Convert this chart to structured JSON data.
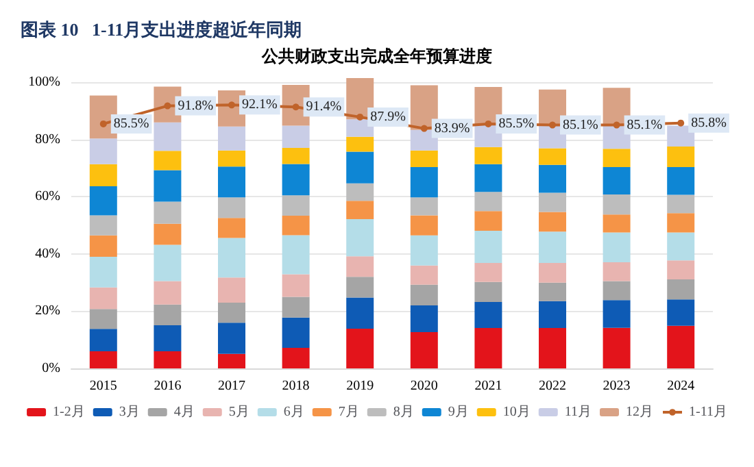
{
  "chart_data": {
    "type": "bar",
    "title": "图表 10   1-11月支出进度超近年同期",
    "subtitle": "公共财政支出完成全年预算进度",
    "categories": [
      "2015",
      "2016",
      "2017",
      "2018",
      "2019",
      "2020",
      "2021",
      "2022",
      "2023",
      "2024"
    ],
    "stacked": true,
    "grid": "y",
    "legend": "bottom",
    "ylim": [
      0,
      102
    ],
    "yticks": [
      {
        "value": 0,
        "label": "0%"
      },
      {
        "value": 20,
        "label": "20%"
      },
      {
        "value": 40,
        "label": "40%"
      },
      {
        "value": 60,
        "label": "60%"
      },
      {
        "value": 80,
        "label": "80%"
      },
      {
        "value": 100,
        "label": "100%"
      }
    ],
    "series": [
      {
        "name": "1-2月",
        "color": "#e3141b",
        "values": [
          6.0,
          6.0,
          5.1,
          7.2,
          13.9,
          12.7,
          14.1,
          14.1,
          14.2,
          14.9
        ]
      },
      {
        "name": "3月",
        "color": "#0e5bb5",
        "values": [
          7.8,
          9.1,
          10.9,
          10.6,
          10.9,
          9.3,
          9.1,
          9.4,
          9.7,
          9.2
        ]
      },
      {
        "name": "4月",
        "color": "#a5a5a5",
        "values": [
          7.0,
          7.2,
          7.0,
          7.2,
          7.2,
          7.3,
          7.0,
          6.5,
          6.6,
          7.0
        ]
      },
      {
        "name": "5月",
        "color": "#e8b4b0",
        "values": [
          7.5,
          8.2,
          8.8,
          7.9,
          7.2,
          6.7,
          6.7,
          6.9,
          6.6,
          6.7
        ]
      },
      {
        "name": "6月",
        "color": "#b4dde8",
        "values": [
          10.7,
          12.7,
          13.8,
          13.7,
          13.0,
          10.5,
          11.2,
          10.9,
          10.4,
          9.7
        ]
      },
      {
        "name": "7月",
        "color": "#f59447",
        "values": [
          7.5,
          7.4,
          7.0,
          6.8,
          6.4,
          7.0,
          6.9,
          6.9,
          6.3,
          6.8
        ]
      },
      {
        "name": "8月",
        "color": "#bdbdbd",
        "values": [
          7.0,
          7.7,
          7.2,
          7.1,
          6.1,
          6.3,
          6.7,
          6.7,
          7.0,
          6.4
        ]
      },
      {
        "name": "9月",
        "color": "#0e86d4",
        "values": [
          10.2,
          11.0,
          10.8,
          11.0,
          11.1,
          10.6,
          9.7,
          9.8,
          9.6,
          9.7
        ]
      },
      {
        "name": "10月",
        "color": "#fdc00f",
        "values": [
          7.7,
          6.8,
          5.6,
          5.6,
          5.2,
          5.8,
          6.0,
          5.8,
          6.4,
          7.2
        ]
      },
      {
        "name": "11月",
        "color": "#c9cde6",
        "values": [
          9.0,
          9.9,
          8.4,
          7.8,
          6.1,
          7.2,
          7.8,
          8.2,
          8.1,
          7.3
        ]
      },
      {
        "name": "12月",
        "color": "#d9a285",
        "values": [
          15.0,
          12.5,
          12.6,
          14.2,
          14.4,
          15.6,
          13.2,
          12.3,
          13.2,
          null
        ]
      },
      {
        "name": "1-11月",
        "type": "line",
        "color": "#c0632a",
        "marker": "circle",
        "values": [
          85.5,
          91.8,
          92.1,
          91.4,
          87.9,
          83.9,
          85.5,
          85.1,
          85.1,
          85.8
        ],
        "value_labels": [
          "85.5%",
          "91.8%",
          "92.1%",
          "91.4%",
          "87.9%",
          "83.9%",
          "85.5%",
          "85.1%",
          "85.1%",
          "85.8%"
        ]
      }
    ]
  }
}
